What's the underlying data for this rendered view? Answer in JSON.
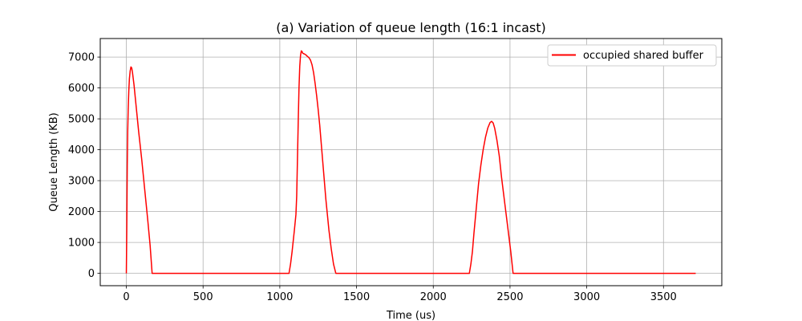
{
  "chart_data": {
    "type": "line",
    "title": "(a) Variation of queue length (16:1 incast)",
    "xlabel": "Time (us)",
    "ylabel": "Queue Length (KB)",
    "xlim": [
      -170,
      3880
    ],
    "ylim": [
      -400,
      7600
    ],
    "xticks": [
      0,
      500,
      1000,
      1500,
      2000,
      2500,
      3000,
      3500
    ],
    "yticks": [
      0,
      1000,
      2000,
      3000,
      4000,
      5000,
      6000,
      7000
    ],
    "grid": true,
    "legend_position": "top-right",
    "series": [
      {
        "name": "occupied shared buffer",
        "color": "#ff0000",
        "points": [
          [
            0,
            0
          ],
          [
            3,
            1500
          ],
          [
            6,
            3500
          ],
          [
            9,
            4600
          ],
          [
            12,
            5300
          ],
          [
            16,
            5900
          ],
          [
            20,
            6300
          ],
          [
            25,
            6550
          ],
          [
            30,
            6680
          ],
          [
            35,
            6650
          ],
          [
            40,
            6500
          ],
          [
            50,
            6100
          ],
          [
            60,
            5600
          ],
          [
            70,
            5100
          ],
          [
            80,
            4600
          ],
          [
            100,
            3700
          ],
          [
            120,
            2700
          ],
          [
            140,
            1700
          ],
          [
            155,
            900
          ],
          [
            168,
            0
          ],
          [
            1060,
            0
          ],
          [
            1070,
            300
          ],
          [
            1080,
            700
          ],
          [
            1095,
            1400
          ],
          [
            1105,
            1900
          ],
          [
            1110,
            2500
          ],
          [
            1115,
            3700
          ],
          [
            1120,
            4900
          ],
          [
            1125,
            6000
          ],
          [
            1130,
            6700
          ],
          [
            1135,
            7050
          ],
          [
            1140,
            7200
          ],
          [
            1145,
            7180
          ],
          [
            1150,
            7120
          ],
          [
            1160,
            7100
          ],
          [
            1170,
            7070
          ],
          [
            1180,
            7020
          ],
          [
            1190,
            6980
          ],
          [
            1200,
            6900
          ],
          [
            1210,
            6750
          ],
          [
            1220,
            6500
          ],
          [
            1230,
            6150
          ],
          [
            1240,
            5750
          ],
          [
            1250,
            5300
          ],
          [
            1260,
            4800
          ],
          [
            1270,
            4200
          ],
          [
            1280,
            3600
          ],
          [
            1290,
            3000
          ],
          [
            1300,
            2400
          ],
          [
            1310,
            1900
          ],
          [
            1320,
            1400
          ],
          [
            1335,
            800
          ],
          [
            1350,
            300
          ],
          [
            1365,
            0
          ],
          [
            2235,
            0
          ],
          [
            2245,
            300
          ],
          [
            2255,
            700
          ],
          [
            2265,
            1300
          ],
          [
            2280,
            2100
          ],
          [
            2295,
            2900
          ],
          [
            2310,
            3500
          ],
          [
            2325,
            4000
          ],
          [
            2340,
            4400
          ],
          [
            2355,
            4700
          ],
          [
            2370,
            4880
          ],
          [
            2380,
            4920
          ],
          [
            2390,
            4870
          ],
          [
            2400,
            4700
          ],
          [
            2415,
            4300
          ],
          [
            2430,
            3800
          ],
          [
            2445,
            3100
          ],
          [
            2460,
            2500
          ],
          [
            2475,
            1900
          ],
          [
            2490,
            1300
          ],
          [
            2505,
            700
          ],
          [
            2520,
            0
          ],
          [
            3710,
            0
          ]
        ]
      }
    ]
  }
}
